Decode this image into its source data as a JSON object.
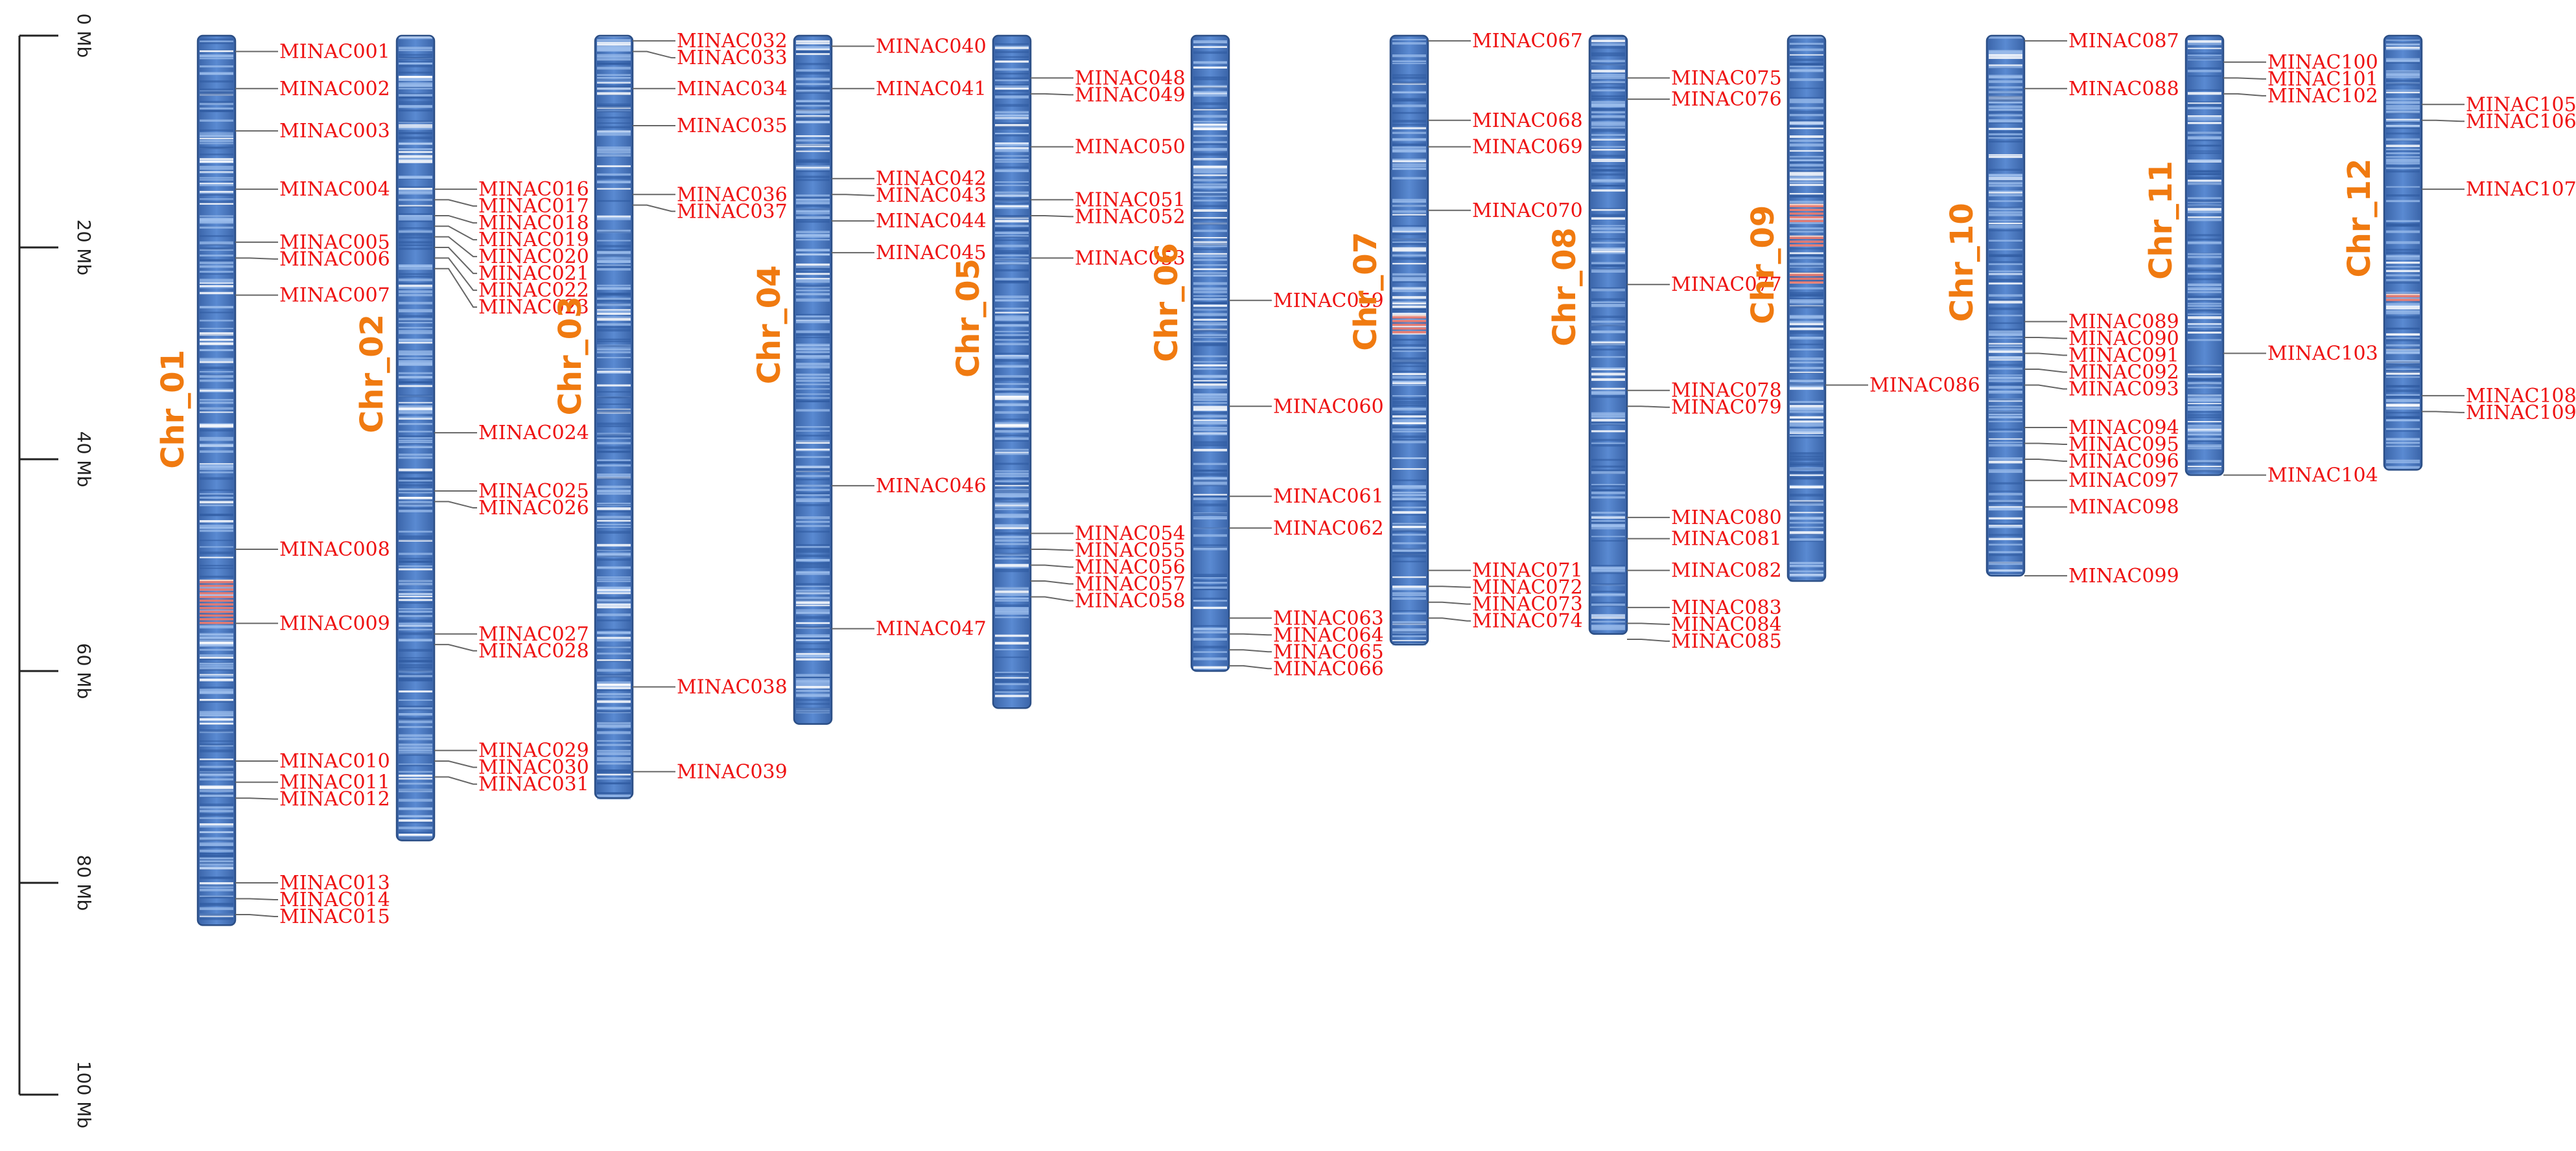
{
  "axis": {
    "unit": "Mb",
    "ticks": [
      {
        "value": 0,
        "label": "0 Mb"
      },
      {
        "value": 20,
        "label": "20 Mb"
      },
      {
        "value": 40,
        "label": "40 Mb"
      },
      {
        "value": 60,
        "label": "60 Mb"
      },
      {
        "value": 80,
        "label": "80 Mb"
      },
      {
        "value": 100,
        "label": "100 Mb"
      }
    ]
  },
  "colors": {
    "chromosome_fill": "#4f7fc8",
    "chromosome_stroke": "#2c4f86",
    "low_density": "#ffffff",
    "high_density": "#f07a6a",
    "chromosome_label": "#f07a10",
    "gene_label": "#ee1111",
    "connector": "#666666"
  },
  "chromosomes": [
    {
      "name": "Chr_01",
      "length": 84.0,
      "hot": [
        [
          51.5,
          55.5
        ]
      ],
      "genes": [
        {
          "id": "MINAC001",
          "pos": 1.5
        },
        {
          "id": "MINAC002",
          "pos": 5.0
        },
        {
          "id": "MINAC003",
          "pos": 9.0
        },
        {
          "id": "MINAC004",
          "pos": 14.5
        },
        {
          "id": "MINAC005",
          "pos": 19.5
        },
        {
          "id": "MINAC006",
          "pos": 21.0
        },
        {
          "id": "MINAC007",
          "pos": 24.5
        },
        {
          "id": "MINAC008",
          "pos": 48.5
        },
        {
          "id": "MINAC009",
          "pos": 55.5
        },
        {
          "id": "MINAC010",
          "pos": 68.5
        },
        {
          "id": "MINAC011",
          "pos": 70.5
        },
        {
          "id": "MINAC012",
          "pos": 72.0
        },
        {
          "id": "MINAC013",
          "pos": 80.0
        },
        {
          "id": "MINAC014",
          "pos": 81.5
        },
        {
          "id": "MINAC015",
          "pos": 83.0
        }
      ]
    },
    {
      "name": "Chr_02",
      "length": 76.0,
      "hot": [],
      "genes": [
        {
          "id": "MINAC016",
          "pos": 14.5
        },
        {
          "id": "MINAC017",
          "pos": 15.5
        },
        {
          "id": "MINAC018",
          "pos": 17.0
        },
        {
          "id": "MINAC019",
          "pos": 18.0
        },
        {
          "id": "MINAC020",
          "pos": 19.0
        },
        {
          "id": "MINAC021",
          "pos": 20.0
        },
        {
          "id": "MINAC022",
          "pos": 21.0
        },
        {
          "id": "MINAC023",
          "pos": 22.0
        },
        {
          "id": "MINAC024",
          "pos": 37.5
        },
        {
          "id": "MINAC025",
          "pos": 43.0
        },
        {
          "id": "MINAC026",
          "pos": 44.0
        },
        {
          "id": "MINAC027",
          "pos": 56.5
        },
        {
          "id": "MINAC028",
          "pos": 57.5
        },
        {
          "id": "MINAC029",
          "pos": 67.5
        },
        {
          "id": "MINAC030",
          "pos": 68.5
        },
        {
          "id": "MINAC031",
          "pos": 70.0
        }
      ]
    },
    {
      "name": "Chr_03",
      "length": 72.0,
      "hot": [],
      "genes": [
        {
          "id": "MINAC032",
          "pos": 0.5
        },
        {
          "id": "MINAC033",
          "pos": 1.5
        },
        {
          "id": "MINAC034",
          "pos": 5.0
        },
        {
          "id": "MINAC035",
          "pos": 8.5
        },
        {
          "id": "MINAC036",
          "pos": 15.0
        },
        {
          "id": "MINAC037",
          "pos": 16.0
        },
        {
          "id": "MINAC038",
          "pos": 61.5
        },
        {
          "id": "MINAC039",
          "pos": 69.5
        }
      ]
    },
    {
      "name": "Chr_04",
      "length": 65.0,
      "hot": [],
      "genes": [
        {
          "id": "MINAC040",
          "pos": 1.0
        },
        {
          "id": "MINAC041",
          "pos": 5.0
        },
        {
          "id": "MINAC042",
          "pos": 13.5
        },
        {
          "id": "MINAC043",
          "pos": 15.0
        },
        {
          "id": "MINAC044",
          "pos": 17.5
        },
        {
          "id": "MINAC045",
          "pos": 20.5
        },
        {
          "id": "MINAC046",
          "pos": 42.5
        },
        {
          "id": "MINAC047",
          "pos": 56.0
        }
      ]
    },
    {
      "name": "Chr_05",
      "length": 63.5,
      "hot": [],
      "genes": [
        {
          "id": "MINAC048",
          "pos": 4.0
        },
        {
          "id": "MINAC049",
          "pos": 5.5
        },
        {
          "id": "MINAC050",
          "pos": 10.5
        },
        {
          "id": "MINAC051",
          "pos": 15.5
        },
        {
          "id": "MINAC052",
          "pos": 17.0
        },
        {
          "id": "MINAC053",
          "pos": 21.0
        },
        {
          "id": "MINAC054",
          "pos": 47.0
        },
        {
          "id": "MINAC055",
          "pos": 48.5
        },
        {
          "id": "MINAC056",
          "pos": 50.0
        },
        {
          "id": "MINAC057",
          "pos": 51.5
        },
        {
          "id": "MINAC058",
          "pos": 53.0
        }
      ]
    },
    {
      "name": "Chr_06",
      "length": 60.0,
      "hot": [],
      "genes": [
        {
          "id": "MINAC059",
          "pos": 25.0
        },
        {
          "id": "MINAC060",
          "pos": 35.0
        },
        {
          "id": "MINAC061",
          "pos": 43.5
        },
        {
          "id": "MINAC062",
          "pos": 46.5
        },
        {
          "id": "MINAC063",
          "pos": 55.0
        },
        {
          "id": "MINAC064",
          "pos": 56.5
        },
        {
          "id": "MINAC065",
          "pos": 58.0
        },
        {
          "id": "MINAC066",
          "pos": 59.5
        }
      ]
    },
    {
      "name": "Chr_07",
      "length": 57.5,
      "hot": [
        [
          26.5,
          28.0
        ]
      ],
      "genes": [
        {
          "id": "MINAC067",
          "pos": 0.5
        },
        {
          "id": "MINAC068",
          "pos": 8.0
        },
        {
          "id": "MINAC069",
          "pos": 10.5
        },
        {
          "id": "MINAC070",
          "pos": 16.5
        },
        {
          "id": "MINAC071",
          "pos": 50.5
        },
        {
          "id": "MINAC072",
          "pos": 52.0
        },
        {
          "id": "MINAC073",
          "pos": 53.5
        },
        {
          "id": "MINAC074",
          "pos": 55.0
        }
      ]
    },
    {
      "name": "Chr_08",
      "length": 56.5,
      "hot": [],
      "genes": [
        {
          "id": "MINAC075",
          "pos": 4.0
        },
        {
          "id": "MINAC076",
          "pos": 6.0
        },
        {
          "id": "MINAC077",
          "pos": 23.5
        },
        {
          "id": "MINAC078",
          "pos": 33.5
        },
        {
          "id": "MINAC079",
          "pos": 35.0
        },
        {
          "id": "MINAC080",
          "pos": 45.5
        },
        {
          "id": "MINAC081",
          "pos": 47.5
        },
        {
          "id": "MINAC082",
          "pos": 50.5
        },
        {
          "id": "MINAC083",
          "pos": 54.0
        },
        {
          "id": "MINAC084",
          "pos": 55.5
        },
        {
          "id": "MINAC085",
          "pos": 57.0
        }
      ]
    },
    {
      "name": "Chr_09",
      "length": 51.5,
      "hot": [
        [
          16.0,
          17.5
        ],
        [
          19.0,
          20.0
        ],
        [
          22.5,
          23.5
        ]
      ],
      "genes": [
        {
          "id": "MINAC086",
          "pos": 33.0
        }
      ]
    },
    {
      "name": "Chr_10",
      "length": 51.0,
      "hot": [],
      "genes": [
        {
          "id": "MINAC087",
          "pos": 0.5
        },
        {
          "id": "MINAC088",
          "pos": 5.0
        },
        {
          "id": "MINAC089",
          "pos": 27.0
        },
        {
          "id": "MINAC090",
          "pos": 28.5
        },
        {
          "id": "MINAC091",
          "pos": 30.0
        },
        {
          "id": "MINAC092",
          "pos": 31.5
        },
        {
          "id": "MINAC093",
          "pos": 33.0
        },
        {
          "id": "MINAC094",
          "pos": 37.0
        },
        {
          "id": "MINAC095",
          "pos": 38.5
        },
        {
          "id": "MINAC096",
          "pos": 40.0
        },
        {
          "id": "MINAC097",
          "pos": 42.0
        },
        {
          "id": "MINAC098",
          "pos": 44.5
        },
        {
          "id": "MINAC099",
          "pos": 51.0
        }
      ]
    },
    {
      "name": "Chr_11",
      "length": 41.5,
      "hot": [],
      "genes": [
        {
          "id": "MINAC100",
          "pos": 2.5
        },
        {
          "id": "MINAC101",
          "pos": 4.0
        },
        {
          "id": "MINAC102",
          "pos": 5.5
        },
        {
          "id": "MINAC103",
          "pos": 30.0
        },
        {
          "id": "MINAC104",
          "pos": 41.5
        }
      ]
    },
    {
      "name": "Chr_12",
      "length": 41.0,
      "hot": [
        [
          24.5,
          25.0
        ]
      ],
      "genes": [
        {
          "id": "MINAC105",
          "pos": 6.5
        },
        {
          "id": "MINAC106",
          "pos": 8.0
        },
        {
          "id": "MINAC107",
          "pos": 14.5
        },
        {
          "id": "MINAC108",
          "pos": 34.0
        },
        {
          "id": "MINAC109",
          "pos": 35.5
        }
      ]
    }
  ]
}
